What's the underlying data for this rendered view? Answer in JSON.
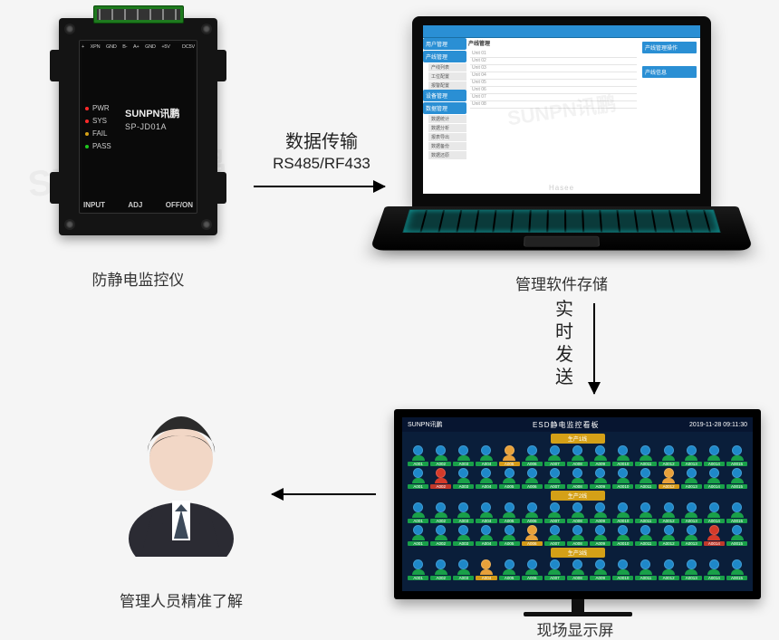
{
  "diagram": {
    "background_color": "#f5f5f5",
    "watermark_text": "SUNPN讯鹏",
    "nodes": {
      "device": {
        "caption": "防静电监控仪",
        "brand": "SUNPN讯鹏",
        "model": "SP-JD01A",
        "top_pin_labels": [
          "+",
          "XPN",
          "GND",
          "B-",
          "A+",
          "GND",
          "+5V",
          "",
          "DC5V"
        ],
        "leds": [
          {
            "label": "PWR",
            "color": "#ff2a2a"
          },
          {
            "label": "SYS",
            "color": "#ff2a2a"
          },
          {
            "label": "FAIL",
            "color": "#d4a017"
          },
          {
            "label": "PASS",
            "color": "#1ec81e"
          }
        ],
        "bottom_labels": [
          "INPUT",
          "ADJ",
          "OFF/ON"
        ]
      },
      "laptop": {
        "caption": "管理软件存储",
        "laptop_brand": "Hasee",
        "software": {
          "sidebar_sections": [
            {
              "header": "用户管理",
              "items": []
            },
            {
              "header": "产线管理",
              "items": [
                "产线列表",
                "工位配置",
                "报警配置"
              ]
            },
            {
              "header": "设备管理",
              "items": []
            },
            {
              "header": "数据管理",
              "items": [
                "数据统计",
                "数据分析",
                "报表导出",
                "数据备份",
                "数据还原"
              ]
            }
          ],
          "tab_label": "产线管理",
          "right_panels": [
            "产线管理操作",
            "产线信息"
          ],
          "list_rows": [
            "Unit 01",
            "Unit 02",
            "Unit 03",
            "Unit 04",
            "Unit 05",
            "Unit 06",
            "Unit 07",
            "Unit 08"
          ]
        }
      },
      "display_board": {
        "caption": "现场显示屏",
        "brand": "SUNPN讯鹏",
        "title": "ESD静电监控看板",
        "timestamp": "2019-11-28 09:11:30",
        "sections": [
          "生产1线",
          "生产2线",
          "生产3线"
        ],
        "cols_per_row": 15,
        "status_colors": {
          "ok": {
            "head": "#1e88c9",
            "body": "#19a049",
            "tag": "#19a049"
          },
          "warn": {
            "head": "#e8a13a",
            "body": "#e8a13a",
            "tag": "#d49a17"
          },
          "fail": {
            "head": "#d43a2a",
            "body": "#d43a2a",
            "tag": "#c0392b"
          }
        },
        "rows": [
          [
            "ok",
            "ok",
            "ok",
            "ok",
            "warn",
            "ok",
            "ok",
            "ok",
            "ok",
            "ok",
            "ok",
            "ok",
            "ok",
            "ok",
            "ok"
          ],
          [
            "ok",
            "fail",
            "ok",
            "ok",
            "ok",
            "ok",
            "ok",
            "ok",
            "ok",
            "ok",
            "ok",
            "warn",
            "ok",
            "ok",
            "ok"
          ],
          [
            "ok",
            "ok",
            "ok",
            "ok",
            "ok",
            "ok",
            "ok",
            "ok",
            "ok",
            "ok",
            "ok",
            "ok",
            "ok",
            "ok",
            "ok"
          ],
          [
            "ok",
            "ok",
            "ok",
            "ok",
            "ok",
            "warn",
            "ok",
            "ok",
            "ok",
            "ok",
            "ok",
            "ok",
            "ok",
            "fail",
            "ok"
          ],
          [
            "ok",
            "ok",
            "ok",
            "warn",
            "ok",
            "ok",
            "ok",
            "ok",
            "ok",
            "ok",
            "ok",
            "ok",
            "ok",
            "ok",
            "ok"
          ]
        ],
        "station_prefix": "A00"
      },
      "manager": {
        "caption": "管理人员精准了解",
        "colors": {
          "hair": "#2b2b2b",
          "skin": "#f2d7c6",
          "suit": "#2b2b33",
          "shirt": "#ffffff",
          "tie": "#3d4a5a"
        }
      }
    },
    "arrows": [
      {
        "id": "a1",
        "from": "device",
        "to": "laptop",
        "label": "数据传输",
        "sublabel": "RS485/RF433",
        "dir": "right"
      },
      {
        "id": "a2",
        "from": "laptop",
        "to": "display",
        "label_vertical": "实时发送",
        "dir": "down"
      },
      {
        "id": "a3",
        "from": "display",
        "to": "manager",
        "dir": "left"
      }
    ]
  }
}
